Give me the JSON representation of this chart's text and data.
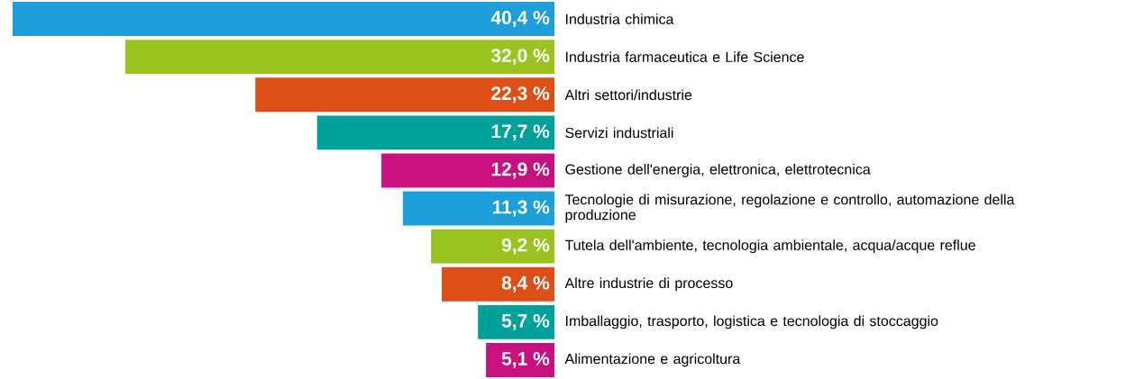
{
  "chart_data": {
    "type": "bar",
    "orientation": "horizontal",
    "categories": [
      "Industria chimica",
      "Industria farmaceutica e Life Science",
      "Altri settori/industrie",
      "Servizi industriali",
      "Gestione dell'energia, elettronica, elettrotecnica",
      "Tecnologie di misurazione, regolazione e controllo, automazione della produzione",
      "Tutela dell'ambiente, tecnologia ambientale, acqua/acque reflue",
      "Altre industrie di processo",
      "Imballaggio, trasporto, logistica e tecnologia di stoccaggio",
      "Alimentazione e agricoltura"
    ],
    "values": [
      40.4,
      32.0,
      22.3,
      17.7,
      12.9,
      11.3,
      9.2,
      8.4,
      5.7,
      5.1
    ],
    "value_labels": [
      "40,4 %",
      "32,0 %",
      "22,3 %",
      "17,7 %",
      "12,9 %",
      "11,3 %",
      "9,2 %",
      "8,4 %",
      "5,7 %",
      "5,1 %"
    ],
    "colors": [
      "#1e9fdc",
      "#9bc31f",
      "#dc5018",
      "#00a19a",
      "#c8107f",
      "#1e9fdc",
      "#9bc31f",
      "#dc5018",
      "#00a19a",
      "#c8107f"
    ]
  }
}
